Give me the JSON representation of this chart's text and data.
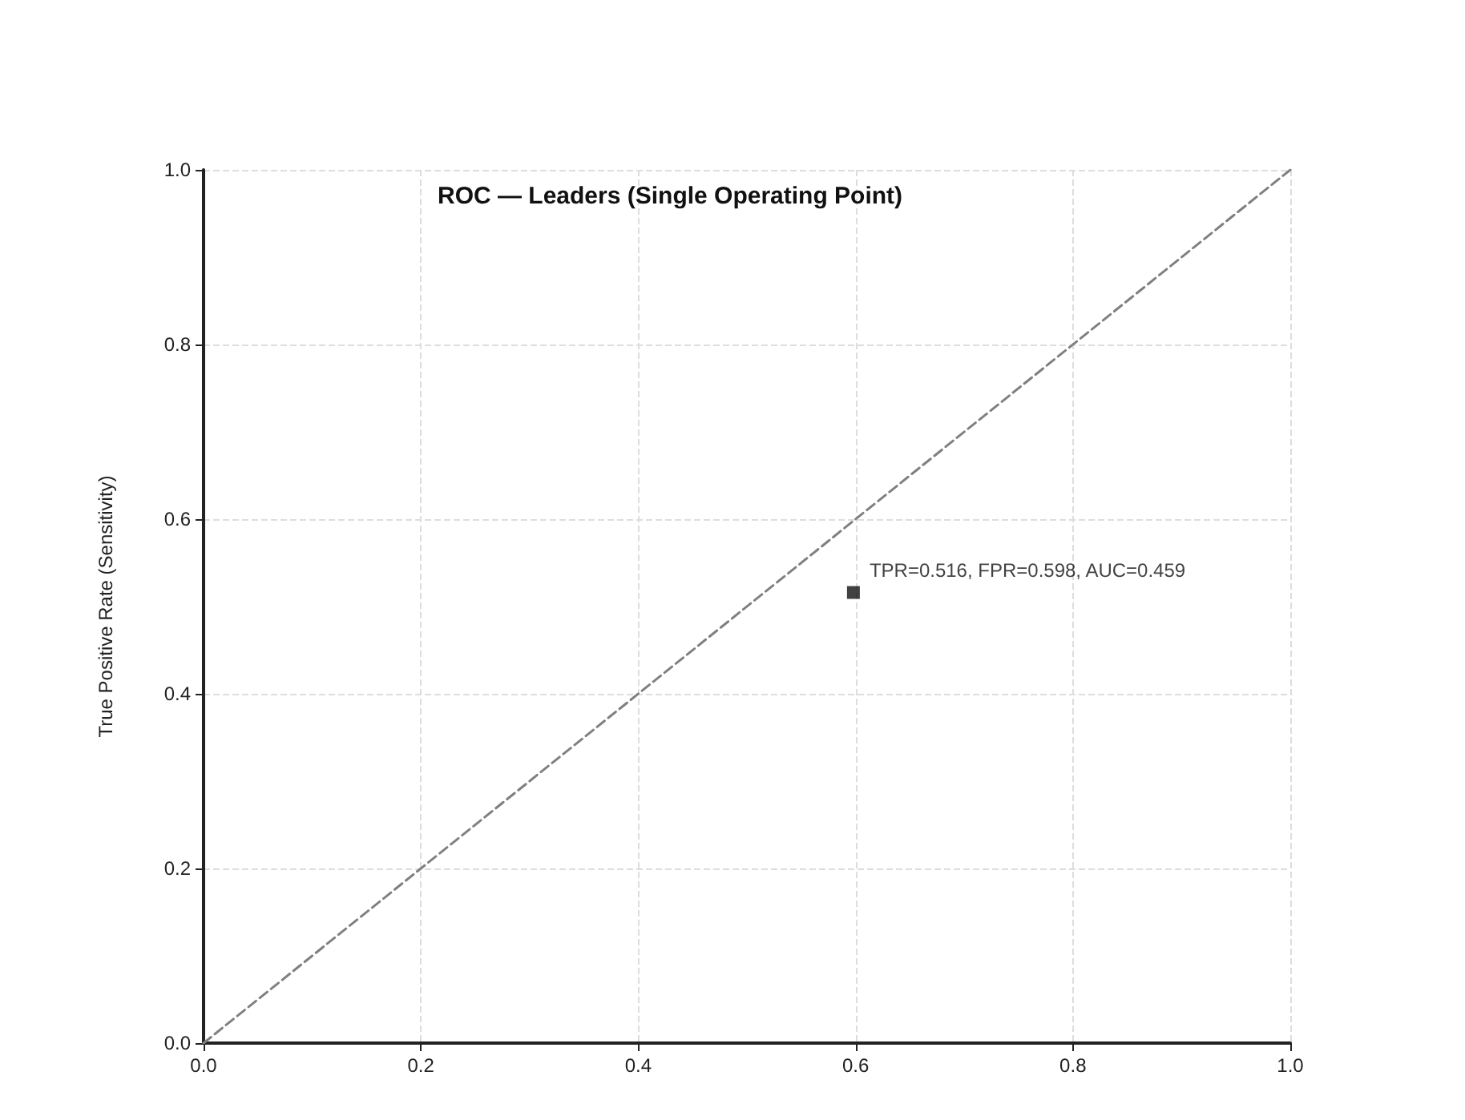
{
  "chart_data": {
    "type": "scatter",
    "title": "ROC — Leaders (Single Operating Point)",
    "ylabel": "True Positive Rate (Sensitivity)",
    "series": [
      {
        "type": "line",
        "x": [
          0,
          1
        ],
        "values": [
          0,
          1
        ],
        "color": "#808080",
        "line_style": "dashed",
        "marker": "none"
      },
      {
        "type": "scatter",
        "x": [
          0.598
        ],
        "values": [
          0.516
        ],
        "color": "#111111",
        "marker": "square"
      }
    ],
    "annotations": [
      {
        "text": "TPR=0.516, FPR=0.598, AUC=0.459",
        "x": 0.598,
        "y": 0.516
      }
    ],
    "xlim": [
      0,
      1
    ],
    "ylim": [
      0,
      1
    ],
    "xticks": [
      {
        "value": 0,
        "label": "0.0"
      },
      {
        "value": 0.2,
        "label": "0.2"
      },
      {
        "value": 0.4,
        "label": "0.4"
      },
      {
        "value": 0.6,
        "label": "0.6"
      },
      {
        "value": 0.8,
        "label": "0.8"
      },
      {
        "value": 1,
        "label": "1.0"
      }
    ],
    "yticks": [
      {
        "value": 0,
        "label": "0.0"
      },
      {
        "value": 0.2,
        "label": "0.2"
      },
      {
        "value": 0.4,
        "label": "0.4"
      },
      {
        "value": 0.6,
        "label": "0.6"
      },
      {
        "value": 0.8,
        "label": "0.8"
      },
      {
        "value": 1,
        "label": "1.0"
      }
    ],
    "grid": true
  }
}
